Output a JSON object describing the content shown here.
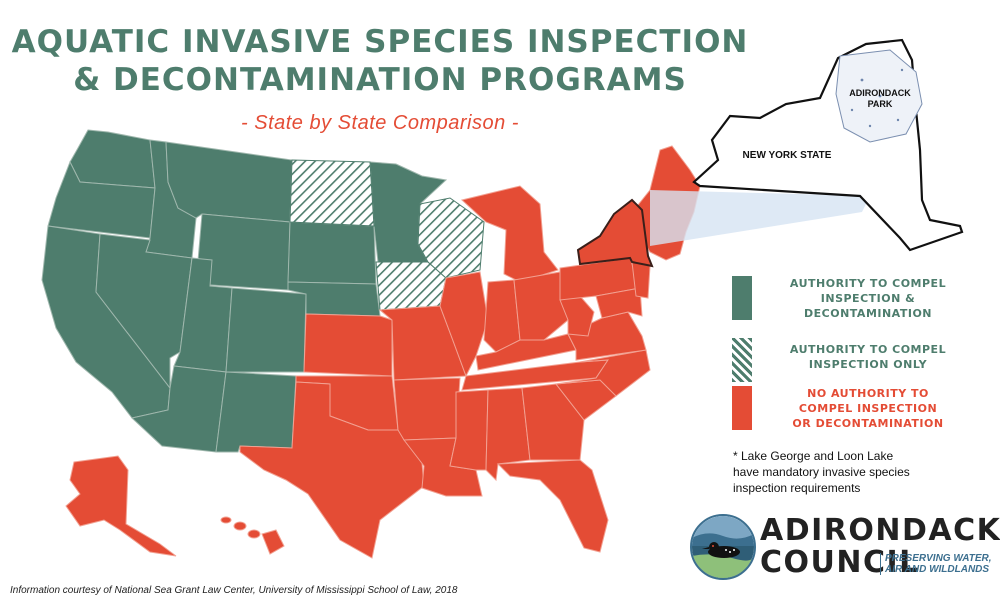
{
  "title": {
    "line1": "AQUATIC INVASIVE SPECIES INSPECTION",
    "line2": "& DECONTAMINATION PROGRAMS",
    "subtitle": "- State by State Comparison -"
  },
  "inset": {
    "state_label": "NEW YORK STATE",
    "park_label_1": "ADIRONDACK",
    "park_label_2": "PARK"
  },
  "legend": {
    "items": [
      {
        "label_lines": [
          "AUTHORITY TO COMPEL",
          "INSPECTION &",
          "DECONTAMINATION"
        ],
        "color": "#4e7d6d",
        "pattern": "solid"
      },
      {
        "label_lines": [
          "AUTHORITY TO COMPEL",
          "INSPECTION ONLY"
        ],
        "color": "#4e7d6d",
        "pattern": "hatched"
      },
      {
        "label_lines": [
          "NO AUTHORITY TO",
          "COMPEL INSPECTION",
          "OR DECONTAMINATION"
        ],
        "color": "#e44c35",
        "pattern": "solid"
      }
    ]
  },
  "note": {
    "line1": "* Lake George and Loon Lake",
    "line2": "have mandatory invasive species",
    "line3": "inspection requirements"
  },
  "logo": {
    "word1": "ADIRONDACK",
    "word2": "COUNCIL",
    "tagline1": "PRESERVING WATER,",
    "tagline2": "AIR AND WILDLANDS"
  },
  "footer": "Information courtesy of National Sea Grant Law Center, University of Mississippi School of Law, 2018",
  "colors": {
    "compel": "#4e7d6d",
    "inspection_only": "#4e7d6d",
    "no_authority": "#e44c35",
    "subtitle": "#e44c35"
  }
}
